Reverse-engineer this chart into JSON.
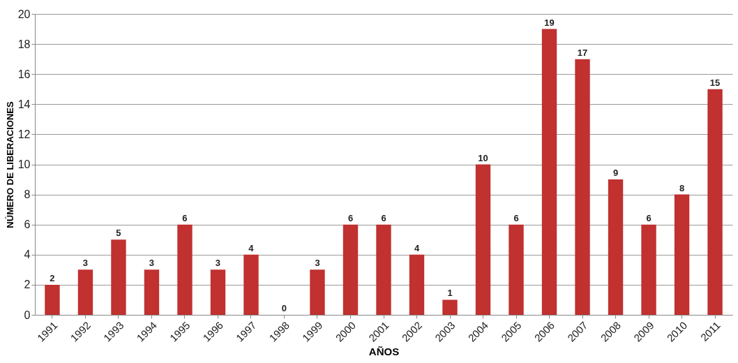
{
  "chart_data": {
    "type": "bar",
    "xlabel": "AÑOS",
    "ylabel": "NÚMERO DE LIBERACIONES",
    "categories": [
      "1991",
      "1992",
      "1993",
      "1994",
      "1995",
      "1996",
      "1997",
      "1998",
      "1999",
      "2000",
      "2001",
      "2002",
      "2003",
      "2004",
      "2005",
      "2006",
      "2007",
      "2008",
      "2009",
      "2010",
      "2011"
    ],
    "values": [
      2,
      3,
      5,
      3,
      6,
      3,
      4,
      0,
      3,
      6,
      6,
      4,
      1,
      10,
      6,
      19,
      17,
      9,
      6,
      8,
      15
    ],
    "color": "#c0312f",
    "ylim": [
      0,
      20
    ],
    "yticks": [
      0,
      2,
      4,
      6,
      8,
      10,
      12,
      14,
      16,
      18,
      20
    ],
    "grid": "y",
    "data_labels": true
  }
}
